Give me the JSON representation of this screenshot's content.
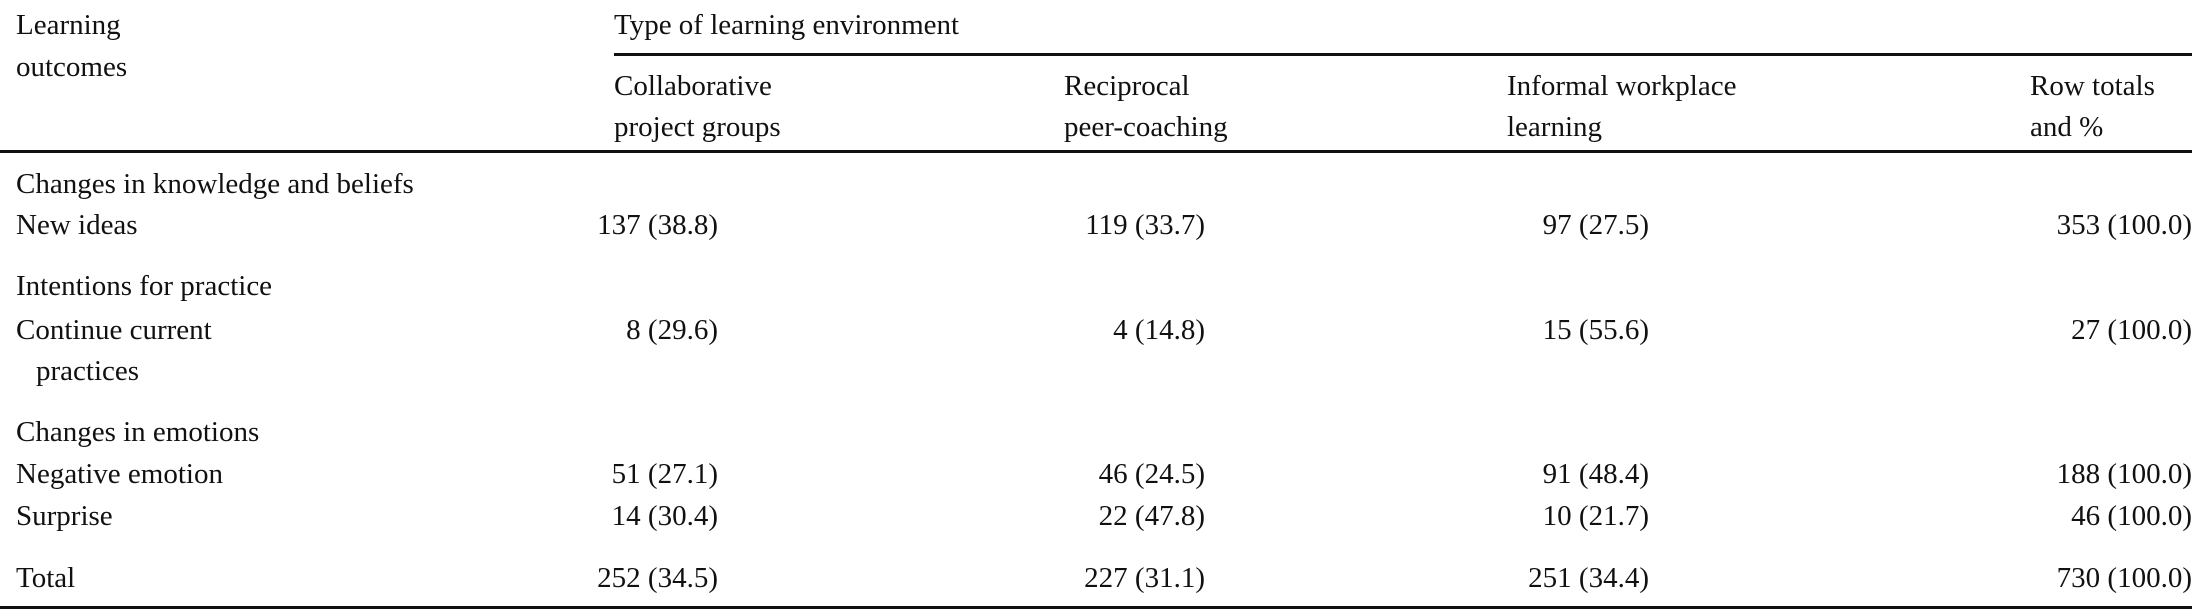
{
  "table": {
    "header": {
      "outcomes_label_line1": "Learning",
      "outcomes_label_line2": "outcomes",
      "group_label": "Type of learning environment",
      "columns": [
        {
          "line1": "Collaborative",
          "line2": "project groups"
        },
        {
          "line1": "Reciprocal",
          "line2": "peer-coaching"
        },
        {
          "line1": "Informal workplace",
          "line2": "learning"
        },
        {
          "line1": "Row totals",
          "line2": "and %"
        }
      ]
    },
    "sections": [
      {
        "title": "Changes in knowledge and beliefs",
        "rows": [
          {
            "label": "New ideas",
            "values": [
              "137 (38.8)",
              "119 (33.7)",
              "97 (27.5)",
              "353 (100.0)"
            ]
          }
        ]
      },
      {
        "title": "Intentions for practice",
        "rows": [
          {
            "label_line1": "Continue current",
            "label_line2": "practices",
            "values": [
              "8 (29.6)",
              "4 (14.8)",
              "15 (55.6)",
              "27 (100.0)"
            ]
          }
        ]
      },
      {
        "title": "Changes in emotions",
        "rows": [
          {
            "label": "Negative emotion",
            "values": [
              "51 (27.1)",
              "46 (24.5)",
              "91 (48.4)",
              "188 (100.0)"
            ]
          },
          {
            "label": "Surprise",
            "values": [
              "14 (30.4)",
              "22 (47.8)",
              "10 (21.7)",
              "46 (100.0)"
            ]
          }
        ]
      }
    ],
    "total": {
      "label": "Total",
      "values": [
        "252 (34.5)",
        "227 (31.1)",
        "251 (34.4)",
        "730 (100.0)"
      ]
    }
  }
}
